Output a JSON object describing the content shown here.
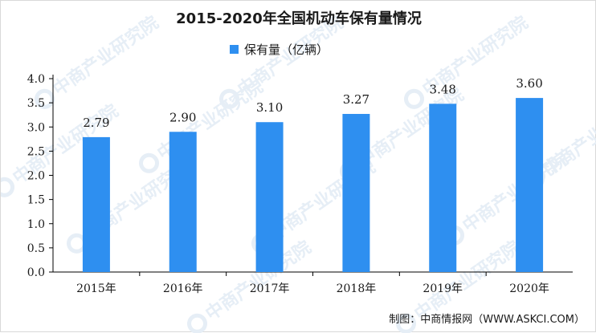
{
  "chart_data": {
    "type": "bar",
    "title": "2015-2020年全国机动车保有量情况",
    "series": [
      {
        "name": "保有量（亿辆）",
        "values": [
          2.79,
          2.9,
          3.1,
          3.27,
          3.48,
          3.6
        ]
      }
    ],
    "categories": [
      "2015年",
      "2016年",
      "2017年",
      "2018年",
      "2019年",
      "2020年"
    ],
    "data_labels": [
      "2.79",
      "2.90",
      "3.10",
      "3.27",
      "3.48",
      "3.60"
    ],
    "yticks": [
      "0.0",
      "0.5",
      "1.0",
      "1.5",
      "2.0",
      "2.5",
      "3.0",
      "3.5",
      "4.0"
    ],
    "ylim": [
      0,
      4.0
    ],
    "grid": false,
    "legend_position": "top",
    "bar_color": "#2e8ff0"
  },
  "source_label": "制图：中商情报网（WWW.ASKCI.COM）",
  "watermark": "中商产业研究院"
}
